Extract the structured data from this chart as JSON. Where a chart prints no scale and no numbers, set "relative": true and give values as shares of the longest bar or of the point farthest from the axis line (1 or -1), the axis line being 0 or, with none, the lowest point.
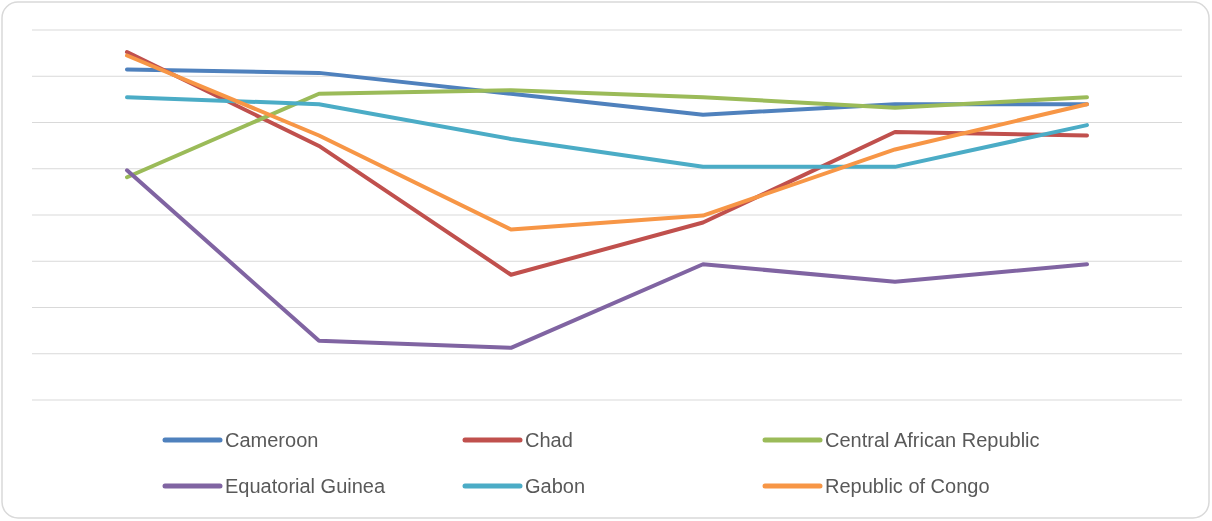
{
  "chart_data": {
    "type": "line",
    "relative": true,
    "grid": true,
    "legend": "bottom",
    "line_style": "solid",
    "marker": "none",
    "categories": [
      null,
      null,
      null,
      null,
      null,
      null
    ],
    "series": [
      {
        "name": "Cameroon",
        "color": "#4f81bd",
        "values": [
          0.95,
          0.94,
          0.88,
          0.82,
          0.85,
          0.85
        ]
      },
      {
        "name": "Chad",
        "color": "#c0504d",
        "values": [
          1.0,
          0.73,
          0.36,
          0.51,
          0.77,
          0.76
        ]
      },
      {
        "name": "Central African Republic",
        "color": "#9bbb59",
        "values": [
          0.64,
          0.88,
          0.89,
          0.87,
          0.84,
          0.87
        ]
      },
      {
        "name": "Equatorial Guinea",
        "color": "#8064a2",
        "values": [
          0.66,
          0.17,
          0.15,
          0.39,
          0.34,
          0.39
        ]
      },
      {
        "name": "Gabon",
        "color": "#4bacc6",
        "values": [
          0.87,
          0.85,
          0.75,
          0.67,
          0.67,
          0.79
        ]
      },
      {
        "name": "Republic of Congo",
        "color": "#f79646",
        "values": [
          0.99,
          0.76,
          0.49,
          0.53,
          0.72,
          0.85
        ]
      }
    ]
  }
}
